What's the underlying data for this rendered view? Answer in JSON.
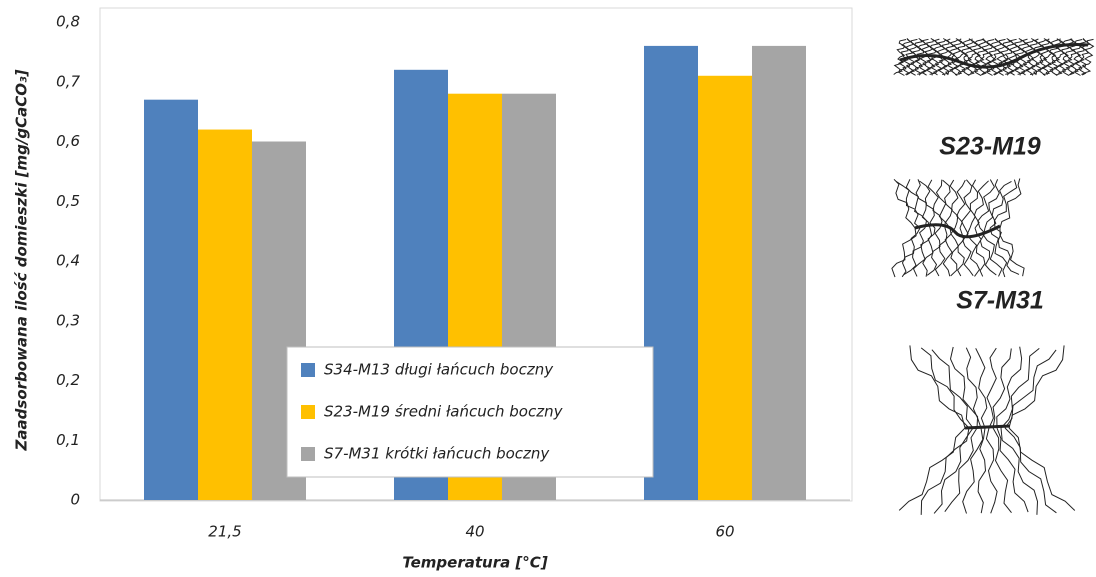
{
  "chart_data": {
    "type": "bar",
    "categories": [
      "21,5",
      "40",
      "60"
    ],
    "series": [
      {
        "name": "S34-M13 długi łańcuch boczny",
        "color": "#4f81bd",
        "values": [
          0.67,
          0.72,
          0.76
        ]
      },
      {
        "name": "S23-M19 średni łańcuch boczny",
        "color": "#ffc000",
        "values": [
          0.62,
          0.68,
          0.71
        ]
      },
      {
        "name": "S7-M31 krótki łańcuch boczny",
        "color": "#a5a5a5",
        "values": [
          0.6,
          0.68,
          0.76
        ]
      }
    ],
    "ylim": [
      0,
      0.8
    ],
    "yticks": [
      0,
      {
        "value": 0.1,
        "label": "0,1"
      },
      {
        "value": 0.2,
        "label": "0,2"
      },
      {
        "value": 0.3,
        "label": "0,3"
      },
      {
        "value": 0.4,
        "label": "0,4"
      },
      {
        "value": 0.5,
        "label": "0,5"
      },
      {
        "value": 0.6,
        "label": "0,6"
      },
      {
        "value": 0.7,
        "label": "0,7"
      },
      {
        "value": 0.8,
        "label": "0,8"
      }
    ],
    "grid": false,
    "xlabel": "Temperatura [°C]",
    "ylabel": "Zaadsorbowana ilość domieszki [mg/gCaCO₃]",
    "annotations": [
      "S23-M19",
      "S7-M31"
    ]
  }
}
